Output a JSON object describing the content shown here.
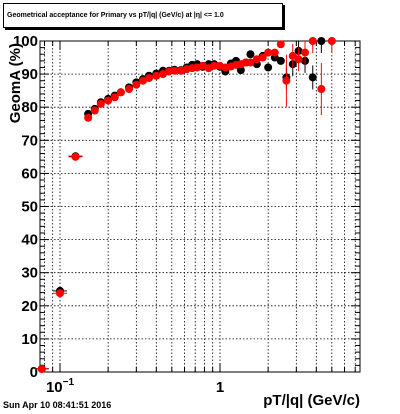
{
  "title": "Geometrical acceptance for Primary vs pT/|q| (GeV/c) at |η| <= 1.0",
  "timestamp": "Sun Apr 10 08:41:51 2016",
  "chart_data": {
    "type": "scatter",
    "title": "Geometrical acceptance for Primary vs pT/|q| (GeV/c) at |η| <= 1.0",
    "xlabel": "pT/|q| (GeV/c)",
    "ylabel": "GeomA (%)",
    "x_scale": "log",
    "xlim": [
      0.075,
      7.5
    ],
    "ylim": [
      0,
      100
    ],
    "grid": true,
    "y_ticks": [
      "0",
      "10",
      "20",
      "30",
      "40",
      "50",
      "60",
      "70",
      "80",
      "90",
      "100"
    ],
    "x_ticks": [
      {
        "value": 0.1,
        "base": "10",
        "exp": "−1"
      },
      {
        "value": 1,
        "base": "1",
        "exp": ""
      }
    ],
    "colors": {
      "black_series": "#000000",
      "red_series": "#ff0000"
    },
    "series": [
      {
        "color": "black",
        "points": [
          {
            "x": 0.077,
            "y": 1.0
          },
          {
            "x": 0.1,
            "y": 24.5
          },
          {
            "x": 0.125,
            "y": 65.2
          },
          {
            "x": 0.15,
            "y": 78.0
          },
          {
            "x": 0.165,
            "y": 79.5
          },
          {
            "x": 0.18,
            "y": 81.5
          },
          {
            "x": 0.2,
            "y": 82.5
          },
          {
            "x": 0.22,
            "y": 83.5
          },
          {
            "x": 0.24,
            "y": 84.5
          },
          {
            "x": 0.27,
            "y": 86.0
          },
          {
            "x": 0.3,
            "y": 87.5
          },
          {
            "x": 0.33,
            "y": 88.5
          },
          {
            "x": 0.36,
            "y": 89.5
          },
          {
            "x": 0.4,
            "y": 90.2
          },
          {
            "x": 0.44,
            "y": 91.0
          },
          {
            "x": 0.48,
            "y": 91.0
          },
          {
            "x": 0.52,
            "y": 91.3
          },
          {
            "x": 0.57,
            "y": 91.2
          },
          {
            "x": 0.62,
            "y": 92.0
          },
          {
            "x": 0.67,
            "y": 92.8
          },
          {
            "x": 0.72,
            "y": 93.0
          },
          {
            "x": 0.78,
            "y": 92.2
          },
          {
            "x": 0.85,
            "y": 93.0
          },
          {
            "x": 0.92,
            "y": 93.0
          },
          {
            "x": 1.0,
            "y": 92.2
          },
          {
            "x": 1.08,
            "y": 90.8
          },
          {
            "x": 1.17,
            "y": 93.2
          },
          {
            "x": 1.26,
            "y": 94.0
          },
          {
            "x": 1.35,
            "y": 91.2
          },
          {
            "x": 1.45,
            "y": 93.5
          },
          {
            "x": 1.55,
            "y": 96.0
          },
          {
            "x": 1.7,
            "y": 93.0
          },
          {
            "x": 1.85,
            "y": 95.5
          },
          {
            "x": 2.0,
            "y": 92.0
          },
          {
            "x": 2.2,
            "y": 95.0
          },
          {
            "x": 2.4,
            "y": 94.0
          },
          {
            "x": 2.6,
            "y": 89.0
          },
          {
            "x": 2.85,
            "y": 93.0
          },
          {
            "x": 3.1,
            "y": 97.0
          },
          {
            "x": 3.4,
            "y": 94.0
          },
          {
            "x": 3.8,
            "y": 89.0
          },
          {
            "x": 4.3,
            "y": 100.0
          }
        ]
      },
      {
        "color": "red",
        "points": [
          {
            "x": 0.077,
            "y": 0.9
          },
          {
            "x": 0.1,
            "y": 23.8
          },
          {
            "x": 0.125,
            "y": 65.0
          },
          {
            "x": 0.15,
            "y": 76.8
          },
          {
            "x": 0.165,
            "y": 79.0
          },
          {
            "x": 0.18,
            "y": 81.0
          },
          {
            "x": 0.2,
            "y": 82.0
          },
          {
            "x": 0.22,
            "y": 83.0
          },
          {
            "x": 0.24,
            "y": 84.5
          },
          {
            "x": 0.27,
            "y": 85.5
          },
          {
            "x": 0.3,
            "y": 86.8
          },
          {
            "x": 0.33,
            "y": 88.0
          },
          {
            "x": 0.36,
            "y": 88.8
          },
          {
            "x": 0.4,
            "y": 89.5
          },
          {
            "x": 0.44,
            "y": 90.0
          },
          {
            "x": 0.48,
            "y": 90.8
          },
          {
            "x": 0.52,
            "y": 91.0
          },
          {
            "x": 0.57,
            "y": 91.0
          },
          {
            "x": 0.62,
            "y": 91.5
          },
          {
            "x": 0.67,
            "y": 91.8
          },
          {
            "x": 0.72,
            "y": 92.0
          },
          {
            "x": 0.78,
            "y": 92.5
          },
          {
            "x": 0.85,
            "y": 91.8
          },
          {
            "x": 0.92,
            "y": 92.5
          },
          {
            "x": 1.0,
            "y": 92.5
          },
          {
            "x": 1.08,
            "y": 92.0
          },
          {
            "x": 1.17,
            "y": 92.3
          },
          {
            "x": 1.26,
            "y": 92.8
          },
          {
            "x": 1.35,
            "y": 93.0
          },
          {
            "x": 1.45,
            "y": 93.5
          },
          {
            "x": 1.55,
            "y": 93.5
          },
          {
            "x": 1.7,
            "y": 94.5
          },
          {
            "x": 1.85,
            "y": 95.0
          },
          {
            "x": 2.0,
            "y": 96.5
          },
          {
            "x": 2.2,
            "y": 96.5
          },
          {
            "x": 2.4,
            "y": 99.0
          },
          {
            "x": 2.6,
            "y": 88.0
          },
          {
            "x": 2.85,
            "y": 95.5
          },
          {
            "x": 3.1,
            "y": 94.5
          },
          {
            "x": 3.4,
            "y": 96.5
          },
          {
            "x": 3.8,
            "y": 100.0
          },
          {
            "x": 4.3,
            "y": 85.5
          },
          {
            "x": 5.0,
            "y": 100.0
          }
        ]
      }
    ]
  }
}
